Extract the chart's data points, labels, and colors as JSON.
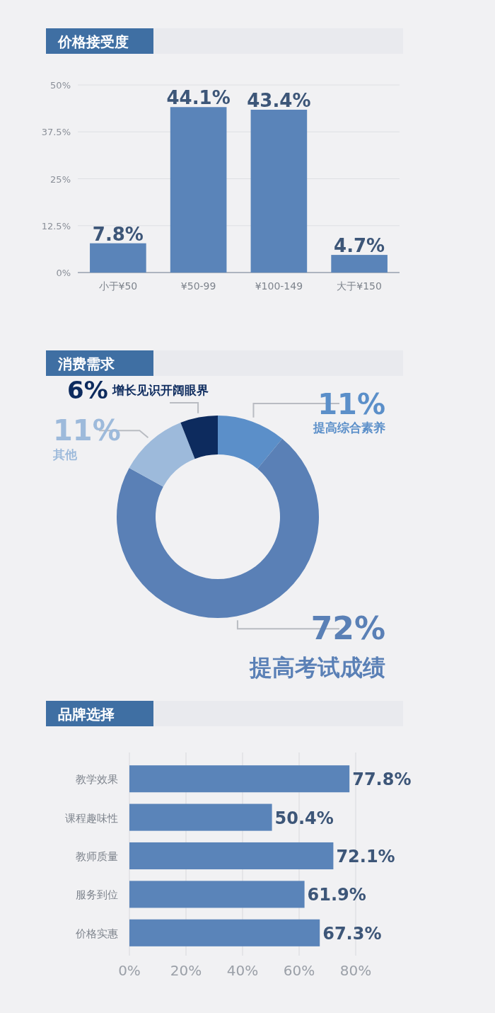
{
  "chart_data": [
    {
      "type": "bar",
      "title": "价格接受度",
      "categories": [
        "小于¥50",
        "¥50-99",
        "¥100-149",
        "大于¥150"
      ],
      "values": [
        7.8,
        44.1,
        43.4,
        4.7
      ],
      "value_labels": [
        "7.8%",
        "44.1%",
        "43.4%",
        "4.7%"
      ],
      "color": "#5a84b9",
      "ylim": [
        0,
        50
      ],
      "yticks": [
        {
          "value": 0,
          "label": "0%"
        },
        {
          "value": 12.5,
          "label": "12.5%"
        },
        {
          "value": 25,
          "label": "25%"
        },
        {
          "value": 37.5,
          "label": "37.5%"
        },
        {
          "value": 50,
          "label": "50%"
        }
      ],
      "grid": "y"
    },
    {
      "type": "donut",
      "title": "消费需求",
      "categories": [
        "提高综合素养",
        "提高考试成绩",
        "其他",
        "增长见识开阔眼界"
      ],
      "values": [
        11,
        72,
        11,
        6
      ],
      "value_labels": [
        "11%",
        "72%",
        "11%",
        "6%"
      ],
      "colors": [
        "#5b8fc9",
        "#5a80b6",
        "#9dbadb",
        "#0d2b5e"
      ],
      "data_labels": true
    },
    {
      "type": "bar",
      "orientation": "horizontal",
      "title": "品牌选择",
      "categories": [
        "教学效果",
        "课程趣味性",
        "教师质量",
        "服务到位",
        "价格实惠"
      ],
      "values": [
        77.8,
        50.4,
        72.1,
        61.9,
        67.3
      ],
      "value_labels": [
        "77.8%",
        "50.4%",
        "72.1%",
        "61.9%",
        "67.3%"
      ],
      "color": "#5a84b9",
      "xlim": [
        0,
        80
      ],
      "xticks": [
        {
          "value": 0,
          "label": "0%"
        },
        {
          "value": 20,
          "label": "20%"
        },
        {
          "value": 40,
          "label": "40%"
        },
        {
          "value": 60,
          "label": "60%"
        },
        {
          "value": 80,
          "label": "80%"
        }
      ],
      "grid": "x"
    }
  ]
}
